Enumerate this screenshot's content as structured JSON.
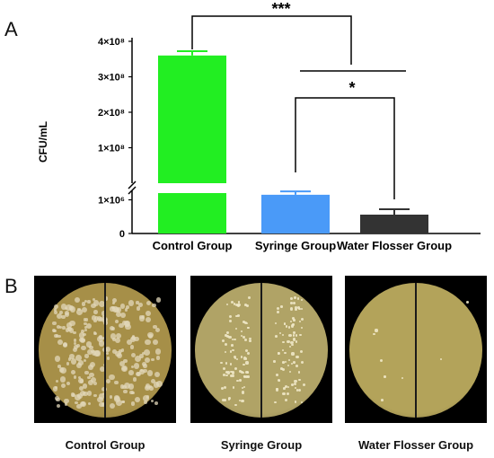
{
  "panels": {
    "a": "A",
    "b": "B"
  },
  "chart_data": {
    "type": "bar",
    "categories": [
      "Control Group",
      "Syringe Group",
      "Water Flosser Group"
    ],
    "values": [
      360000000,
      1150000,
      560000
    ],
    "errors": [
      12000000,
      100000,
      160000
    ],
    "ylabel": "CFU/mL",
    "y_ticks_upper": [
      "1×10⁸",
      "2×10⁸",
      "3×10⁸",
      "4×10⁸"
    ],
    "y_ticks_lower": [
      "0",
      "1×10⁶"
    ],
    "axis_break": true,
    "colors": [
      "#22ee22",
      "#4a9af8",
      "#333333"
    ],
    "significance": [
      {
        "pair": [
          "Control Group",
          "Water Flosser Group"
        ],
        "label": "***"
      },
      {
        "pair": [
          "Syringe Group",
          "Water Flosser Group"
        ],
        "label": "*"
      }
    ]
  },
  "plates": [
    {
      "caption": "Control Group",
      "agar_color": "#a68f48",
      "colony_density": "confluent"
    },
    {
      "caption": "Syringe Group",
      "agar_color": "#b0a366",
      "colony_density": "moderate"
    },
    {
      "caption": "Water Flosser Group",
      "agar_color": "#b3a35a",
      "colony_density": "sparse"
    }
  ]
}
